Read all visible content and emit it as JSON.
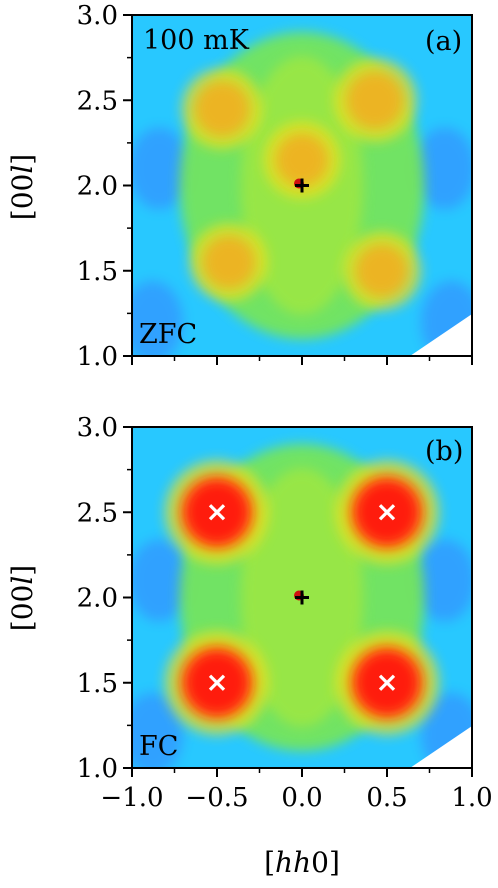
{
  "chart_data": [
    {
      "type": "heatmap",
      "panel_label": "(a)",
      "temperature_label": "100 mK",
      "condition_label": "ZFC",
      "ylabel": "[00l]",
      "xlabel": "",
      "xlim": [
        -1.0,
        1.0
      ],
      "ylim": [
        1.0,
        3.0
      ],
      "x_ticks": [
        "",
        "",
        "",
        "",
        ""
      ],
      "x_tick_values": [
        -1.0,
        -0.5,
        0.0,
        0.5,
        1.0
      ],
      "y_ticks": [
        "1.0",
        "1.5",
        "2.0",
        "2.5",
        "3.0"
      ],
      "y_tick_values": [
        1.0,
        1.5,
        2.0,
        2.5,
        3.0
      ],
      "colormap": "jet",
      "background_color": "#28c8ff",
      "diffuse_color": "#7ee84a",
      "peak_color": "#ff1a10",
      "hotspots": [
        {
          "h": -0.47,
          "l": 2.45,
          "intensity": 0.55
        },
        {
          "h": 0.43,
          "l": 2.5,
          "intensity": 0.6
        },
        {
          "h": -0.43,
          "l": 1.55,
          "intensity": 0.5
        },
        {
          "h": 0.47,
          "l": 1.5,
          "intensity": 0.5
        },
        {
          "h": 0.0,
          "l": 2.15,
          "intensity": 0.5
        }
      ],
      "markers": [
        {
          "h": 0.0,
          "l": 2.0,
          "symbol": "+",
          "color": "#000000"
        }
      ]
    },
    {
      "type": "heatmap",
      "panel_label": "(b)",
      "temperature_label": "",
      "condition_label": "FC",
      "ylabel": "[00l]",
      "xlabel": "[hh0]",
      "xlim": [
        -1.0,
        1.0
      ],
      "ylim": [
        1.0,
        3.0
      ],
      "x_ticks": [
        "−1.0",
        "−0.5",
        "0.0",
        "0.5",
        "1.0"
      ],
      "x_tick_values": [
        -1.0,
        -0.5,
        0.0,
        0.5,
        1.0
      ],
      "y_ticks": [
        "1.0",
        "1.5",
        "2.0",
        "2.5",
        "3.0"
      ],
      "y_tick_values": [
        1.0,
        1.5,
        2.0,
        2.5,
        3.0
      ],
      "colormap": "jet",
      "background_color": "#28c8ff",
      "diffuse_color": "#7ee84a",
      "peak_color": "#ff1a10",
      "hotspots": [
        {
          "h": -0.5,
          "l": 2.5,
          "intensity": 1.0
        },
        {
          "h": 0.5,
          "l": 2.5,
          "intensity": 1.0
        },
        {
          "h": -0.5,
          "l": 1.5,
          "intensity": 1.0
        },
        {
          "h": 0.5,
          "l": 1.5,
          "intensity": 1.0
        }
      ],
      "markers": [
        {
          "h": 0.0,
          "l": 2.0,
          "symbol": "+",
          "color": "#000000"
        },
        {
          "h": -0.5,
          "l": 2.5,
          "symbol": "×",
          "color": "#ffffff"
        },
        {
          "h": 0.5,
          "l": 2.5,
          "symbol": "×",
          "color": "#ffffff"
        },
        {
          "h": -0.5,
          "l": 1.5,
          "symbol": "×",
          "color": "#ffffff"
        },
        {
          "h": 0.5,
          "l": 1.5,
          "symbol": "×",
          "color": "#ffffff"
        }
      ]
    }
  ]
}
